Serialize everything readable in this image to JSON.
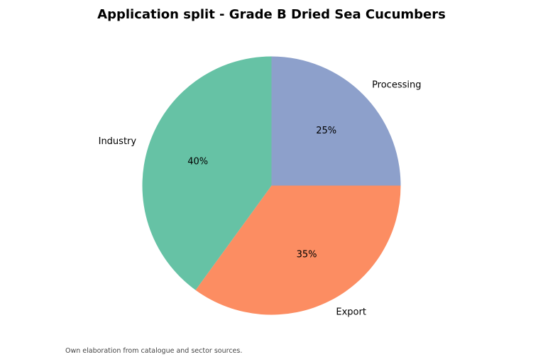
{
  "chart_data": {
    "type": "pie",
    "title": "Application split - Grade B Dried Sea Cucumbers",
    "categories": [
      "Processing",
      "Export",
      "Industry"
    ],
    "values": [
      25,
      35,
      40
    ],
    "value_labels": [
      "25%",
      "35%",
      "40%"
    ],
    "colors": [
      "#8da0cb",
      "#fc8d62",
      "#66c2a5"
    ],
    "start_angle": "90° (12 o'clock)",
    "direction": "clockwise",
    "legend": "none"
  },
  "footer": {
    "source_note": "Own elaboration from catalogue and sector sources."
  }
}
